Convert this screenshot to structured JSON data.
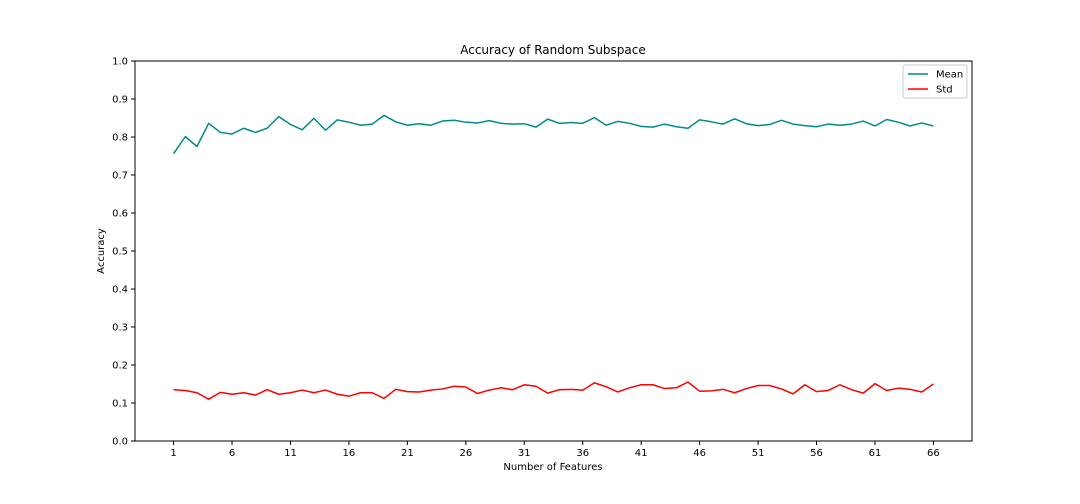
{
  "chart_data": {
    "type": "line",
    "title": "Accuracy of Random Subspace",
    "xlabel": "Number of Features",
    "ylabel": "Accuracy",
    "x": [
      1,
      2,
      3,
      4,
      5,
      6,
      7,
      8,
      9,
      10,
      11,
      12,
      13,
      14,
      15,
      16,
      17,
      18,
      19,
      20,
      21,
      22,
      23,
      24,
      25,
      26,
      27,
      28,
      29,
      30,
      31,
      32,
      33,
      34,
      35,
      36,
      37,
      38,
      39,
      40,
      41,
      42,
      43,
      44,
      45,
      46,
      47,
      48,
      49,
      50,
      51,
      52,
      53,
      54,
      55,
      56,
      57,
      58,
      59,
      60,
      61,
      62,
      63,
      64,
      65,
      66
    ],
    "xlim": [
      -2.3,
      69.3
    ],
    "ylim": [
      0.0,
      1.0
    ],
    "xticks": [
      1,
      6,
      11,
      16,
      21,
      26,
      31,
      36,
      41,
      46,
      51,
      56,
      61,
      66
    ],
    "yticks": [
      0.0,
      0.1,
      0.2,
      0.3,
      0.4,
      0.5,
      0.6,
      0.7,
      0.8,
      0.9,
      1.0
    ],
    "ytick_labels": [
      "0.0",
      "0.1",
      "0.2",
      "0.3",
      "0.4",
      "0.5",
      "0.6",
      "0.7",
      "0.8",
      "0.9",
      "1.0"
    ],
    "legend_position": "top-right",
    "grid": false,
    "series": [
      {
        "name": "Mean",
        "color": "#008b8b",
        "values": [
          0.756,
          0.801,
          0.775,
          0.836,
          0.812,
          0.808,
          0.823,
          0.812,
          0.823,
          0.854,
          0.833,
          0.819,
          0.849,
          0.818,
          0.845,
          0.839,
          0.831,
          0.834,
          0.857,
          0.84,
          0.831,
          0.835,
          0.831,
          0.842,
          0.844,
          0.839,
          0.837,
          0.843,
          0.836,
          0.834,
          0.835,
          0.826,
          0.847,
          0.836,
          0.838,
          0.836,
          0.851,
          0.831,
          0.841,
          0.836,
          0.828,
          0.826,
          0.834,
          0.827,
          0.823,
          0.845,
          0.84,
          0.834,
          0.848,
          0.835,
          0.83,
          0.833,
          0.844,
          0.834,
          0.83,
          0.827,
          0.834,
          0.831,
          0.834,
          0.842,
          0.829,
          0.846,
          0.839,
          0.829,
          0.837,
          0.829
        ]
      },
      {
        "name": "Std",
        "color": "#ff0000",
        "values": [
          0.135,
          0.133,
          0.127,
          0.11,
          0.128,
          0.123,
          0.127,
          0.121,
          0.135,
          0.123,
          0.127,
          0.134,
          0.127,
          0.134,
          0.123,
          0.118,
          0.127,
          0.127,
          0.112,
          0.136,
          0.13,
          0.129,
          0.134,
          0.137,
          0.144,
          0.142,
          0.125,
          0.134,
          0.14,
          0.135,
          0.148,
          0.144,
          0.126,
          0.135,
          0.136,
          0.134,
          0.153,
          0.143,
          0.129,
          0.14,
          0.148,
          0.148,
          0.138,
          0.14,
          0.155,
          0.131,
          0.132,
          0.136,
          0.127,
          0.138,
          0.146,
          0.146,
          0.137,
          0.124,
          0.148,
          0.13,
          0.133,
          0.148,
          0.135,
          0.126,
          0.151,
          0.133,
          0.139,
          0.136,
          0.129,
          0.15
        ]
      }
    ]
  }
}
